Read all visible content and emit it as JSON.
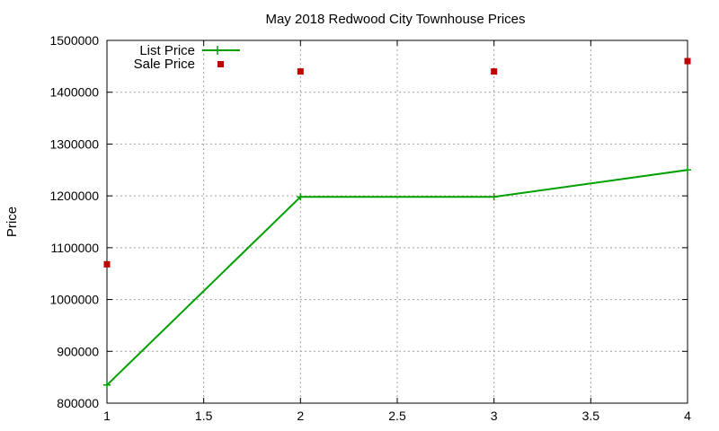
{
  "chart_data": {
    "type": "line",
    "title": "May 2018 Redwood City Townhouse Prices",
    "xlabel": "",
    "ylabel": "Price",
    "xlim": [
      1,
      4
    ],
    "ylim": [
      800000,
      1500000
    ],
    "xticks": [
      1,
      1.5,
      2,
      2.5,
      3,
      3.5,
      4
    ],
    "xtick_labels": [
      "1",
      "1.5",
      "2",
      "2.5",
      "3",
      "3.5",
      "4"
    ],
    "yticks": [
      800000,
      900000,
      1000000,
      1100000,
      1200000,
      1300000,
      1400000,
      1500000
    ],
    "ytick_labels": [
      "800000",
      "900000",
      "1000000",
      "1100000",
      "1200000",
      "1300000",
      "1400000",
      "1500000"
    ],
    "grid": true,
    "legend_position": "top-left",
    "series": [
      {
        "name": "List Price",
        "style": "line-plus",
        "color": "#00a000",
        "x": [
          1,
          2,
          3,
          4
        ],
        "y": [
          835000,
          1198000,
          1198000,
          1250000
        ]
      },
      {
        "name": "Sale Price",
        "style": "square-points",
        "color": "#c00000",
        "x": [
          1,
          2,
          3,
          4
        ],
        "y": [
          1068000,
          1440000,
          1440000,
          1460000
        ]
      }
    ]
  }
}
